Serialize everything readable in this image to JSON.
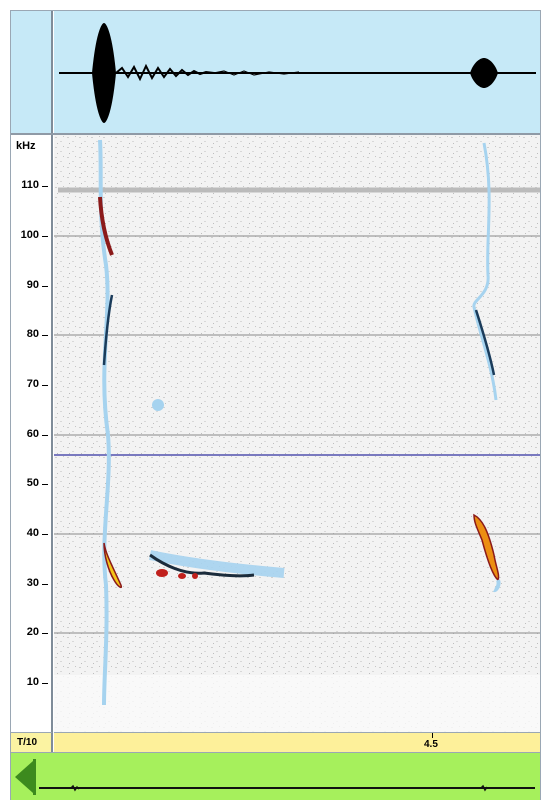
{
  "spectrogram": {
    "frequency_unit": "kHz",
    "frequency_ticks": [
      "110",
      "100",
      "90",
      "80",
      "70",
      "60",
      "50",
      "40",
      "30",
      "20",
      "10"
    ],
    "frequency_range_khz": [
      0,
      119
    ],
    "reference_line_khz": 56
  },
  "time_axis": {
    "unit_label": "T/10",
    "tick_labels": [
      "4.5"
    ]
  },
  "colors": {
    "waveform_background": "#c6e9f7",
    "spectrogram_background": "#f6f6f6",
    "time_axis_background": "#fdf09a",
    "overview_background": "#a6f05c",
    "reference_line": "#3030a0",
    "gridline": "#8a8a8a"
  },
  "icons": {
    "overview_handle": "left-triangle-icon"
  }
}
